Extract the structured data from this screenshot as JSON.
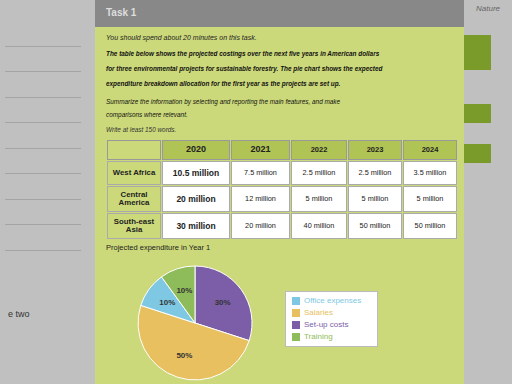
{
  "chart_data": {
    "type": "pie",
    "title": "Projected expenditure in Year 1",
    "categories": [
      "Set-up costs",
      "Salaries",
      "Office expenses",
      "Training"
    ],
    "values": [
      30,
      50,
      10,
      10
    ],
    "value_labels": [
      "30%",
      "50%",
      "10%",
      "10%"
    ],
    "colors": [
      "#7b5ea7",
      "#e8c060",
      "#7ec8e3",
      "#8fbc5a"
    ],
    "data_labels": true,
    "legend": "right",
    "annotations": [
      "Task 1",
      "You should spend about 20 minutes on this task.",
      "The table below shows the projected costings over the next five years in American dollars",
      "for three environmental projects for sustainable forestry. The pie chart shows the expected",
      "expenditure breakdown allocation for the first year as the projects are set up.",
      "Summarize the information by selecting and reporting the main features, and make",
      "comparisons where relevant.",
      "Write at least 150 words.",
      "Nature",
      "e two"
    ],
    "table": {
      "headers": [
        "2020",
        "2021",
        "2022",
        "2023",
        "2024"
      ],
      "rows": [
        [
          "West Africa",
          "10.5 million",
          "7.5 million",
          "2.5 million",
          "2.5 million",
          "3.5 million"
        ],
        [
          "Central\nAmerica",
          "20 million",
          "12 million",
          "5 million",
          "5 million",
          "5 million"
        ],
        [
          "South-east\nAsia",
          "30 million",
          "20 million",
          "40 million",
          "50 million",
          "50 million"
        ]
      ]
    }
  }
}
